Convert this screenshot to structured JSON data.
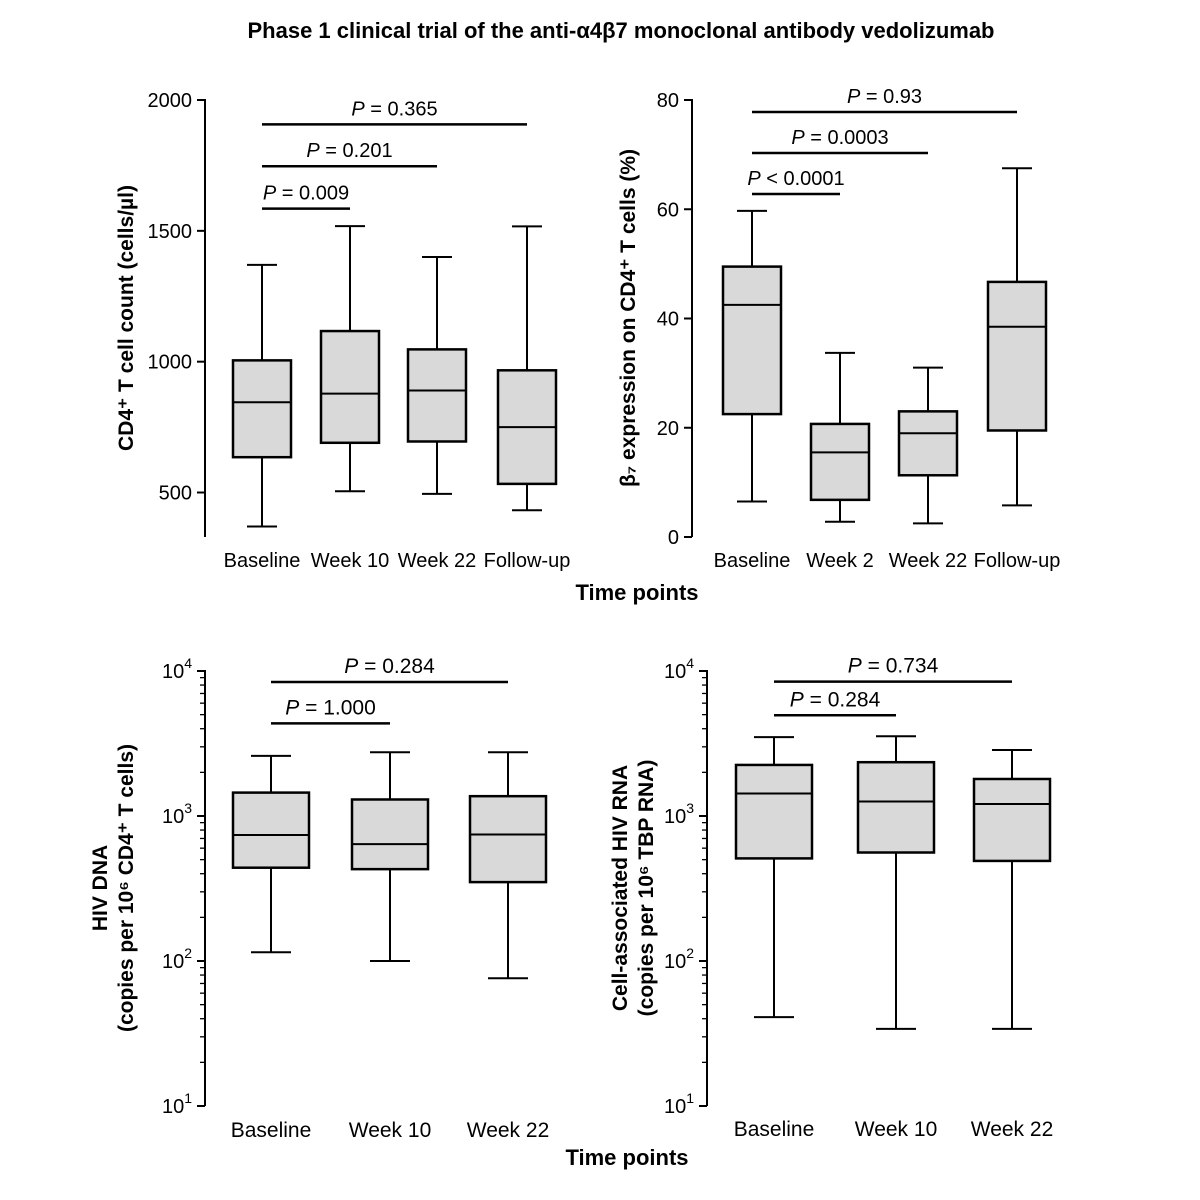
{
  "title": "Phase 1 clinical trial of the anti-α4β7 monoclonal antibody vedolizumab",
  "x_axis_title_top": "Time points",
  "x_axis_title_bottom": "Time points",
  "chart_data": [
    {
      "type": "box",
      "ylabel_lines": [
        "CD4⁺ T cell count (cells/µl)"
      ],
      "scale": "linear",
      "ylim": [
        330,
        2000
      ],
      "yticks": [
        {
          "v": 500,
          "label": "500"
        },
        {
          "v": 1000,
          "label": "1000"
        },
        {
          "v": 1500,
          "label": "1500"
        },
        {
          "v": 2000,
          "label": "2000"
        }
      ],
      "categories": [
        "Baseline",
        "Week 10",
        "Week 22",
        "Follow-up"
      ],
      "boxes": [
        {
          "min": 370,
          "q1": 635,
          "median": 845,
          "q3": 1005,
          "max": 1370
        },
        {
          "min": 505,
          "q1": 690,
          "median": 878,
          "q3": 1117,
          "max": 1518
        },
        {
          "min": 495,
          "q1": 695,
          "median": 890,
          "q3": 1047,
          "max": 1400
        },
        {
          "min": 432,
          "q1": 533,
          "median": 750,
          "q3": 967,
          "max": 1517
        }
      ],
      "pvalues": [
        {
          "from": 0,
          "to": 1,
          "text": " = 0.009",
          "level": 1585
        },
        {
          "from": 0,
          "to": 2,
          "text": " = 0.201",
          "level": 1747
        },
        {
          "from": 0,
          "to": 3,
          "text": " = 0.365",
          "level": 1907
        }
      ]
    },
    {
      "type": "box",
      "ylabel_lines": [
        "β₇ expression on CD4⁺ T cells (%)"
      ],
      "scale": "linear",
      "ylim": [
        0,
        80
      ],
      "yticks": [
        {
          "v": 0,
          "label": "0"
        },
        {
          "v": 20,
          "label": "20"
        },
        {
          "v": 40,
          "label": "40"
        },
        {
          "v": 60,
          "label": "60"
        },
        {
          "v": 80,
          "label": "80"
        }
      ],
      "categories": [
        "Baseline",
        "Week 2",
        "Week 22",
        "Follow-up"
      ],
      "boxes": [
        {
          "min": 6.5,
          "q1": 22.5,
          "median": 42.5,
          "q3": 49.5,
          "max": 59.7
        },
        {
          "min": 2.8,
          "q1": 6.8,
          "median": 15.5,
          "q3": 20.7,
          "max": 33.7
        },
        {
          "min": 2.5,
          "q1": 11.3,
          "median": 19.0,
          "q3": 23.0,
          "max": 31.0
        },
        {
          "min": 5.8,
          "q1": 19.5,
          "median": 38.5,
          "q3": 46.7,
          "max": 67.5
        }
      ],
      "pvalues": [
        {
          "from": 0,
          "to": 1,
          "text": " < 0.0001",
          "level": 62.8
        },
        {
          "from": 0,
          "to": 2,
          "text": " = 0.0003",
          "level": 70.3
        },
        {
          "from": 0,
          "to": 3,
          "text": " = 0.93",
          "level": 77.8
        }
      ]
    },
    {
      "type": "box",
      "ylabel_lines": [
        "HIV DNA",
        "(copies per 10⁶ CD4⁺ T cells)"
      ],
      "scale": "log",
      "ylim": [
        10,
        10000
      ],
      "yticks": [
        {
          "v": 10,
          "label": "10",
          "sup": "1"
        },
        {
          "v": 100,
          "label": "10",
          "sup": "2"
        },
        {
          "v": 1000,
          "label": "10",
          "sup": "3"
        },
        {
          "v": 10000,
          "label": "10",
          "sup": "4"
        }
      ],
      "categories": [
        "Baseline",
        "Week 10",
        "Week 22"
      ],
      "boxes": [
        {
          "min": 115,
          "q1": 440,
          "median": 740,
          "q3": 1450,
          "max": 2600
        },
        {
          "min": 100,
          "q1": 430,
          "median": 640,
          "q3": 1300,
          "max": 2750
        },
        {
          "min": 76,
          "q1": 350,
          "median": 745,
          "q3": 1370,
          "max": 2750
        }
      ],
      "pvalues": [
        {
          "from": 0,
          "to": 1,
          "text": " = 1.000",
          "level": 4350
        },
        {
          "from": 0,
          "to": 2,
          "text": " = 0.284",
          "level": 8400
        }
      ]
    },
    {
      "type": "box",
      "ylabel_lines": [
        "Cell-associated HIV RNA",
        "(copies per 10⁶ TBP RNA)"
      ],
      "scale": "log",
      "ylim": [
        10,
        10000
      ],
      "yticks": [
        {
          "v": 10,
          "label": "10",
          "sup": "1"
        },
        {
          "v": 100,
          "label": "10",
          "sup": "2"
        },
        {
          "v": 1000,
          "label": "10",
          "sup": "3"
        },
        {
          "v": 10000,
          "label": "10",
          "sup": "4"
        }
      ],
      "categories": [
        "Baseline",
        "Week 10",
        "Week 22"
      ],
      "boxes": [
        {
          "min": 41,
          "q1": 510,
          "median": 1430,
          "q3": 2250,
          "max": 3500
        },
        {
          "min": 34,
          "q1": 560,
          "median": 1260,
          "q3": 2350,
          "max": 3550
        },
        {
          "min": 34,
          "q1": 490,
          "median": 1210,
          "q3": 1800,
          "max": 2850
        }
      ],
      "pvalues": [
        {
          "from": 0,
          "to": 1,
          "text": " = 0.284",
          "level": 4950
        },
        {
          "from": 0,
          "to": 2,
          "text": " = 0.734",
          "level": 8450
        }
      ]
    }
  ],
  "colors": {
    "box_fill": "#d9d9d9",
    "stroke": "#000000"
  }
}
